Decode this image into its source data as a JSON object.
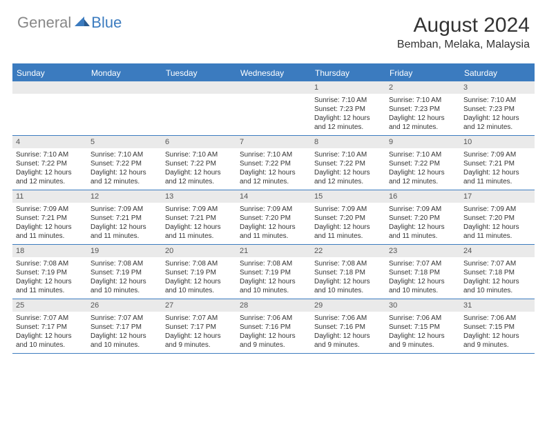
{
  "logo": {
    "text1": "General",
    "text2": "Blue"
  },
  "title": "August 2024",
  "location": "Bemban, Melaka, Malaysia",
  "colors": {
    "accent": "#3b7bbf",
    "header_bg": "#3b7bbf",
    "header_text": "#ffffff",
    "daynum_bg": "#eaeaea",
    "daynum_text": "#555555",
    "body_text": "#333333",
    "logo_gray": "#888888",
    "logo_blue": "#3b7bbf",
    "border": "#3b7bbf"
  },
  "day_headers": [
    "Sunday",
    "Monday",
    "Tuesday",
    "Wednesday",
    "Thursday",
    "Friday",
    "Saturday"
  ],
  "weeks": [
    [
      {
        "num": "",
        "sunrise": "",
        "sunset": "",
        "daylight": ""
      },
      {
        "num": "",
        "sunrise": "",
        "sunset": "",
        "daylight": ""
      },
      {
        "num": "",
        "sunrise": "",
        "sunset": "",
        "daylight": ""
      },
      {
        "num": "",
        "sunrise": "",
        "sunset": "",
        "daylight": ""
      },
      {
        "num": "1",
        "sunrise": "Sunrise: 7:10 AM",
        "sunset": "Sunset: 7:23 PM",
        "daylight": "Daylight: 12 hours and 12 minutes."
      },
      {
        "num": "2",
        "sunrise": "Sunrise: 7:10 AM",
        "sunset": "Sunset: 7:23 PM",
        "daylight": "Daylight: 12 hours and 12 minutes."
      },
      {
        "num": "3",
        "sunrise": "Sunrise: 7:10 AM",
        "sunset": "Sunset: 7:23 PM",
        "daylight": "Daylight: 12 hours and 12 minutes."
      }
    ],
    [
      {
        "num": "4",
        "sunrise": "Sunrise: 7:10 AM",
        "sunset": "Sunset: 7:22 PM",
        "daylight": "Daylight: 12 hours and 12 minutes."
      },
      {
        "num": "5",
        "sunrise": "Sunrise: 7:10 AM",
        "sunset": "Sunset: 7:22 PM",
        "daylight": "Daylight: 12 hours and 12 minutes."
      },
      {
        "num": "6",
        "sunrise": "Sunrise: 7:10 AM",
        "sunset": "Sunset: 7:22 PM",
        "daylight": "Daylight: 12 hours and 12 minutes."
      },
      {
        "num": "7",
        "sunrise": "Sunrise: 7:10 AM",
        "sunset": "Sunset: 7:22 PM",
        "daylight": "Daylight: 12 hours and 12 minutes."
      },
      {
        "num": "8",
        "sunrise": "Sunrise: 7:10 AM",
        "sunset": "Sunset: 7:22 PM",
        "daylight": "Daylight: 12 hours and 12 minutes."
      },
      {
        "num": "9",
        "sunrise": "Sunrise: 7:10 AM",
        "sunset": "Sunset: 7:22 PM",
        "daylight": "Daylight: 12 hours and 12 minutes."
      },
      {
        "num": "10",
        "sunrise": "Sunrise: 7:09 AM",
        "sunset": "Sunset: 7:21 PM",
        "daylight": "Daylight: 12 hours and 11 minutes."
      }
    ],
    [
      {
        "num": "11",
        "sunrise": "Sunrise: 7:09 AM",
        "sunset": "Sunset: 7:21 PM",
        "daylight": "Daylight: 12 hours and 11 minutes."
      },
      {
        "num": "12",
        "sunrise": "Sunrise: 7:09 AM",
        "sunset": "Sunset: 7:21 PM",
        "daylight": "Daylight: 12 hours and 11 minutes."
      },
      {
        "num": "13",
        "sunrise": "Sunrise: 7:09 AM",
        "sunset": "Sunset: 7:21 PM",
        "daylight": "Daylight: 12 hours and 11 minutes."
      },
      {
        "num": "14",
        "sunrise": "Sunrise: 7:09 AM",
        "sunset": "Sunset: 7:20 PM",
        "daylight": "Daylight: 12 hours and 11 minutes."
      },
      {
        "num": "15",
        "sunrise": "Sunrise: 7:09 AM",
        "sunset": "Sunset: 7:20 PM",
        "daylight": "Daylight: 12 hours and 11 minutes."
      },
      {
        "num": "16",
        "sunrise": "Sunrise: 7:09 AM",
        "sunset": "Sunset: 7:20 PM",
        "daylight": "Daylight: 12 hours and 11 minutes."
      },
      {
        "num": "17",
        "sunrise": "Sunrise: 7:09 AM",
        "sunset": "Sunset: 7:20 PM",
        "daylight": "Daylight: 12 hours and 11 minutes."
      }
    ],
    [
      {
        "num": "18",
        "sunrise": "Sunrise: 7:08 AM",
        "sunset": "Sunset: 7:19 PM",
        "daylight": "Daylight: 12 hours and 11 minutes."
      },
      {
        "num": "19",
        "sunrise": "Sunrise: 7:08 AM",
        "sunset": "Sunset: 7:19 PM",
        "daylight": "Daylight: 12 hours and 10 minutes."
      },
      {
        "num": "20",
        "sunrise": "Sunrise: 7:08 AM",
        "sunset": "Sunset: 7:19 PM",
        "daylight": "Daylight: 12 hours and 10 minutes."
      },
      {
        "num": "21",
        "sunrise": "Sunrise: 7:08 AM",
        "sunset": "Sunset: 7:19 PM",
        "daylight": "Daylight: 12 hours and 10 minutes."
      },
      {
        "num": "22",
        "sunrise": "Sunrise: 7:08 AM",
        "sunset": "Sunset: 7:18 PM",
        "daylight": "Daylight: 12 hours and 10 minutes."
      },
      {
        "num": "23",
        "sunrise": "Sunrise: 7:07 AM",
        "sunset": "Sunset: 7:18 PM",
        "daylight": "Daylight: 12 hours and 10 minutes."
      },
      {
        "num": "24",
        "sunrise": "Sunrise: 7:07 AM",
        "sunset": "Sunset: 7:18 PM",
        "daylight": "Daylight: 12 hours and 10 minutes."
      }
    ],
    [
      {
        "num": "25",
        "sunrise": "Sunrise: 7:07 AM",
        "sunset": "Sunset: 7:17 PM",
        "daylight": "Daylight: 12 hours and 10 minutes."
      },
      {
        "num": "26",
        "sunrise": "Sunrise: 7:07 AM",
        "sunset": "Sunset: 7:17 PM",
        "daylight": "Daylight: 12 hours and 10 minutes."
      },
      {
        "num": "27",
        "sunrise": "Sunrise: 7:07 AM",
        "sunset": "Sunset: 7:17 PM",
        "daylight": "Daylight: 12 hours and 9 minutes."
      },
      {
        "num": "28",
        "sunrise": "Sunrise: 7:06 AM",
        "sunset": "Sunset: 7:16 PM",
        "daylight": "Daylight: 12 hours and 9 minutes."
      },
      {
        "num": "29",
        "sunrise": "Sunrise: 7:06 AM",
        "sunset": "Sunset: 7:16 PM",
        "daylight": "Daylight: 12 hours and 9 minutes."
      },
      {
        "num": "30",
        "sunrise": "Sunrise: 7:06 AM",
        "sunset": "Sunset: 7:15 PM",
        "daylight": "Daylight: 12 hours and 9 minutes."
      },
      {
        "num": "31",
        "sunrise": "Sunrise: 7:06 AM",
        "sunset": "Sunset: 7:15 PM",
        "daylight": "Daylight: 12 hours and 9 minutes."
      }
    ]
  ]
}
